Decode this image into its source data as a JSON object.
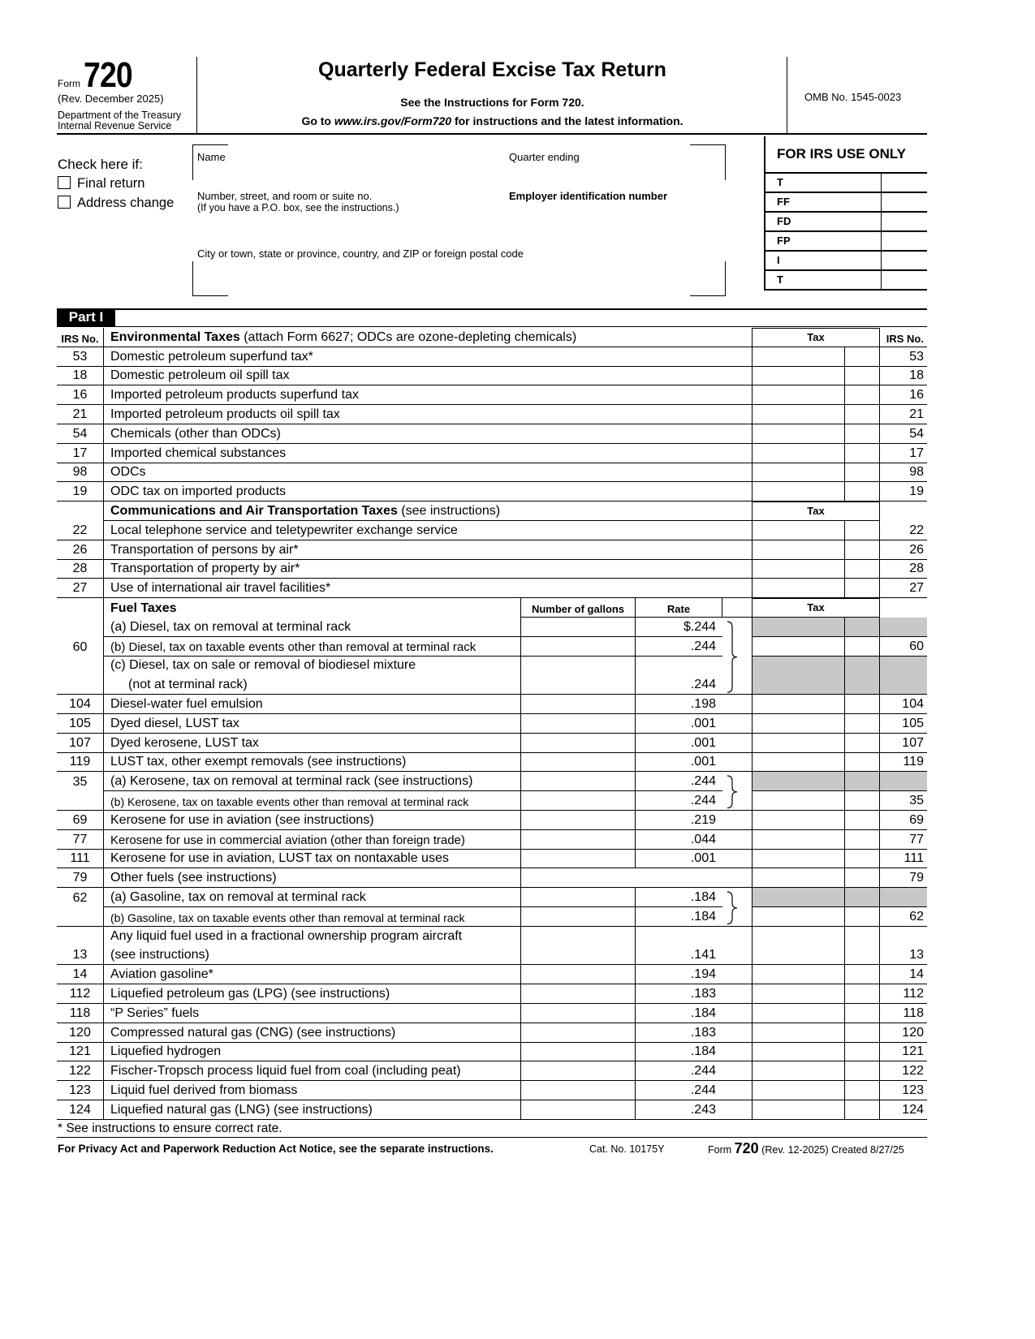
{
  "header": {
    "form_label": "Form",
    "form_number": "720",
    "revision": "(Rev. December 2025)",
    "department": "Department of the Treasury",
    "service": "Internal Revenue Service",
    "title": "Quarterly Federal Excise Tax Return",
    "instructions_line": "See the Instructions for Form 720.",
    "goto_prefix": "Go to ",
    "goto_url": "www.irs.gov/Form720",
    "goto_suffix": " for instructions and the latest information.",
    "omb": "OMB No. 1545-0023"
  },
  "filer": {
    "check_here": "Check here if:",
    "final_return": "Final return",
    "address_change": "Address change",
    "name_label": "Name",
    "quarter_label": "Quarter ending",
    "street_label": "Number, street, and room or suite no.",
    "street_note": "(If you have a P.O. box, see the instructions.)",
    "ein_label": "Employer identification number",
    "city_label": "City or town, state or province, country, and ZIP or foreign postal code"
  },
  "irs_use": {
    "title": "FOR IRS USE ONLY",
    "codes": [
      "T",
      "FF",
      "FD",
      "FP",
      "I",
      "T"
    ]
  },
  "part": "Part I",
  "columns": {
    "irs_no": "IRS No.",
    "tax": "Tax",
    "gallons": "Number of gallons",
    "rate": "Rate"
  },
  "sections": {
    "environmental": {
      "title": "Environmental Taxes",
      "note": " (attach Form 6627; ODCs are ozone-depleting chemicals)"
    },
    "communications": {
      "title": "Communications and Air Transportation Taxes",
      "note": " (see instructions)"
    },
    "fuel": {
      "title": "Fuel Taxes"
    }
  },
  "environmental_rows": [
    {
      "no": "53",
      "desc": "Domestic petroleum superfund tax*"
    },
    {
      "no": "18",
      "desc": "Domestic petroleum oil spill tax"
    },
    {
      "no": "16",
      "desc": "Imported petroleum products superfund tax"
    },
    {
      "no": "21",
      "desc": "Imported petroleum products oil spill tax"
    },
    {
      "no": "54",
      "desc": "Chemicals (other than ODCs)"
    },
    {
      "no": "17",
      "desc": "Imported chemical substances"
    },
    {
      "no": "98",
      "desc": "ODCs"
    },
    {
      "no": "19",
      "desc": "ODC tax on imported products"
    }
  ],
  "communications_rows": [
    {
      "no": "22",
      "desc": "Local telephone service and teletypewriter exchange service"
    },
    {
      "no": "26",
      "desc": "Transportation of persons by air*"
    },
    {
      "no": "28",
      "desc": "Transportation of property by air*"
    },
    {
      "no": "27",
      "desc": "Use of international air travel facilities*"
    }
  ],
  "fuel_rows": [
    {
      "no": "",
      "rno": "",
      "desc": "(a)  Diesel, tax on removal at terminal rack",
      "rate": "$.244",
      "shade": true,
      "grp": "first"
    },
    {
      "no": "60",
      "rno": "60",
      "desc": "(b)  Diesel, tax on taxable events other than removal at terminal rack",
      "rate": ".244",
      "grp": "mid",
      "sm": true
    },
    {
      "no": "",
      "rno": "",
      "desc": "(c)  Diesel, tax on sale or removal of biodiesel mixture",
      "desc2": "(not at terminal rack)",
      "rate": ".244",
      "shade": true,
      "grp": "last",
      "tall": true
    },
    {
      "no": "104",
      "rno": "104",
      "desc": "Diesel-water fuel emulsion",
      "rate": ".198"
    },
    {
      "no": "105",
      "rno": "105",
      "desc": "Dyed diesel, LUST tax",
      "rate": ".001"
    },
    {
      "no": "107",
      "rno": "107",
      "desc": "Dyed kerosene, LUST tax",
      "rate": ".001"
    },
    {
      "no": "119",
      "rno": "119",
      "desc": "LUST tax, other exempt removals (see instructions)",
      "rate": ".001"
    },
    {
      "no": "35",
      "rno": "",
      "desc": "(a)  Kerosene, tax on removal at terminal rack (see instructions)",
      "rate": ".244",
      "shade": true,
      "grp": "first"
    },
    {
      "no": "",
      "rno": "35",
      "desc": "(b)  Kerosene, tax on taxable events other than removal at terminal rack",
      "rate": ".244",
      "grp": "last",
      "xs": true
    },
    {
      "no": "69",
      "rno": "69",
      "desc": "Kerosene for use in aviation (see instructions)",
      "rate": ".219"
    },
    {
      "no": "77",
      "rno": "77",
      "desc": "Kerosene for use in commercial aviation (other than foreign trade)",
      "rate": ".044",
      "sm": true
    },
    {
      "no": "111",
      "rno": "111",
      "desc": "Kerosene for use in aviation, LUST tax on nontaxable uses",
      "rate": ".001"
    },
    {
      "no": "79",
      "rno": "79",
      "desc": "Other fuels (see instructions)",
      "rate": "",
      "nogal": true
    },
    {
      "no": "62",
      "rno": "",
      "desc": "(a)  Gasoline, tax on removal at terminal rack",
      "rate": ".184",
      "shade": true,
      "grp": "first"
    },
    {
      "no": "",
      "rno": "62",
      "desc": "(b)  Gasoline, tax on taxable events other than removal at terminal rack",
      "rate": ".184",
      "grp": "last",
      "xs": true
    },
    {
      "no": "13",
      "rno": "13",
      "desc": "Any liquid fuel used in a fractional ownership program aircraft",
      "desc2": "(see instructions)",
      "rate": ".141",
      "tall": true,
      "notop": true
    },
    {
      "no": "14",
      "rno": "14",
      "desc": "Aviation gasoline*",
      "rate": ".194"
    },
    {
      "no": "112",
      "rno": "112",
      "desc": "Liquefied petroleum gas (LPG) (see instructions)",
      "rate": ".183"
    },
    {
      "no": "118",
      "rno": "118",
      "desc": "“P Series” fuels",
      "rate": ".184"
    },
    {
      "no": "120",
      "rno": "120",
      "desc": "Compressed natural gas (CNG) (see instructions)",
      "rate": ".183"
    },
    {
      "no": "121",
      "rno": "121",
      "desc": "Liquefied hydrogen",
      "rate": ".184"
    },
    {
      "no": "122",
      "rno": "122",
      "desc": "Fischer-Tropsch process liquid fuel from coal (including peat)",
      "rate": ".244"
    },
    {
      "no": "123",
      "rno": "123",
      "desc": "Liquid fuel derived from biomass",
      "rate": ".244"
    },
    {
      "no": "124",
      "rno": "124",
      "desc": "Liquefied natural gas (LNG) (see instructions)",
      "rate": ".243"
    }
  ],
  "footnote": "* See instructions to ensure correct rate.",
  "footer": {
    "privacy": "For Privacy Act and Paperwork Reduction Act Notice, see the separate instructions.",
    "cat": "Cat. No. 10175Y",
    "form_label": "Form",
    "form_number": "720",
    "rev": " (Rev. 12-2025) Created 8/27/25"
  },
  "colors": {
    "shade": "#c8c8c8"
  }
}
